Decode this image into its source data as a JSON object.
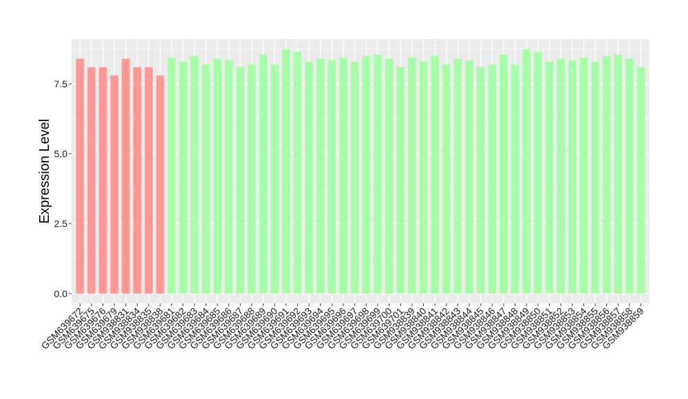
{
  "chart_data": {
    "type": "bar",
    "title": "",
    "xlabel": "",
    "ylabel": "Expression Level",
    "ylim": [
      -0.35,
      9.1
    ],
    "yticks": [
      0.0,
      2.5,
      5.0,
      7.5
    ],
    "ytick_labels": [
      "0.0",
      "2.5",
      "5.0",
      "7.5"
    ],
    "grid": true,
    "panel_background": "#ebebeb",
    "grid_color": "#ffffff",
    "group_colors": [
      "#ff9896",
      "#a6ffa6"
    ],
    "categories": [
      "GSM639672",
      "GSM639675",
      "GSM639676",
      "GSM639679",
      "GSM938831",
      "GSM938834",
      "GSM938835",
      "GSM938838",
      "GSM639681",
      "GSM639682",
      "GSM639683",
      "GSM639684",
      "GSM639685",
      "GSM639686",
      "GSM639687",
      "GSM639688",
      "GSM639689",
      "GSM639690",
      "GSM639691",
      "GSM639692",
      "GSM639693",
      "GSM639694",
      "GSM639695",
      "GSM639696",
      "GSM639697",
      "GSM639698",
      "GSM639699",
      "GSM639700",
      "GSM639701",
      "GSM938839",
      "GSM938840",
      "GSM938841",
      "GSM938842",
      "GSM938843",
      "GSM938844",
      "GSM938845",
      "GSM938846",
      "GSM938847",
      "GSM938848",
      "GSM938849",
      "GSM938850",
      "GSM938851",
      "GSM938852",
      "GSM938853",
      "GSM938854",
      "GSM938855",
      "GSM938856",
      "GSM938857",
      "GSM938858",
      "GSM938859"
    ],
    "values": [
      8.4,
      8.1,
      8.1,
      7.8,
      8.4,
      8.1,
      8.1,
      7.8,
      8.45,
      8.3,
      8.5,
      8.2,
      8.4,
      8.35,
      8.1,
      8.2,
      8.55,
      8.2,
      8.75,
      8.65,
      8.3,
      8.4,
      8.35,
      8.45,
      8.3,
      8.5,
      8.55,
      8.4,
      8.1,
      8.45,
      8.3,
      8.5,
      8.2,
      8.4,
      8.35,
      8.1,
      8.2,
      8.55,
      8.2,
      8.75,
      8.65,
      8.3,
      8.4,
      8.35,
      8.45,
      8.3,
      8.5,
      8.55,
      8.4,
      8.1
    ],
    "groups": [
      0,
      0,
      0,
      0,
      0,
      0,
      0,
      0,
      1,
      1,
      1,
      1,
      1,
      1,
      1,
      1,
      1,
      1,
      1,
      1,
      1,
      1,
      1,
      1,
      1,
      1,
      1,
      1,
      1,
      1,
      1,
      1,
      1,
      1,
      1,
      1,
      1,
      1,
      1,
      1,
      1,
      1,
      1,
      1,
      1,
      1,
      1,
      1,
      1,
      1
    ]
  }
}
